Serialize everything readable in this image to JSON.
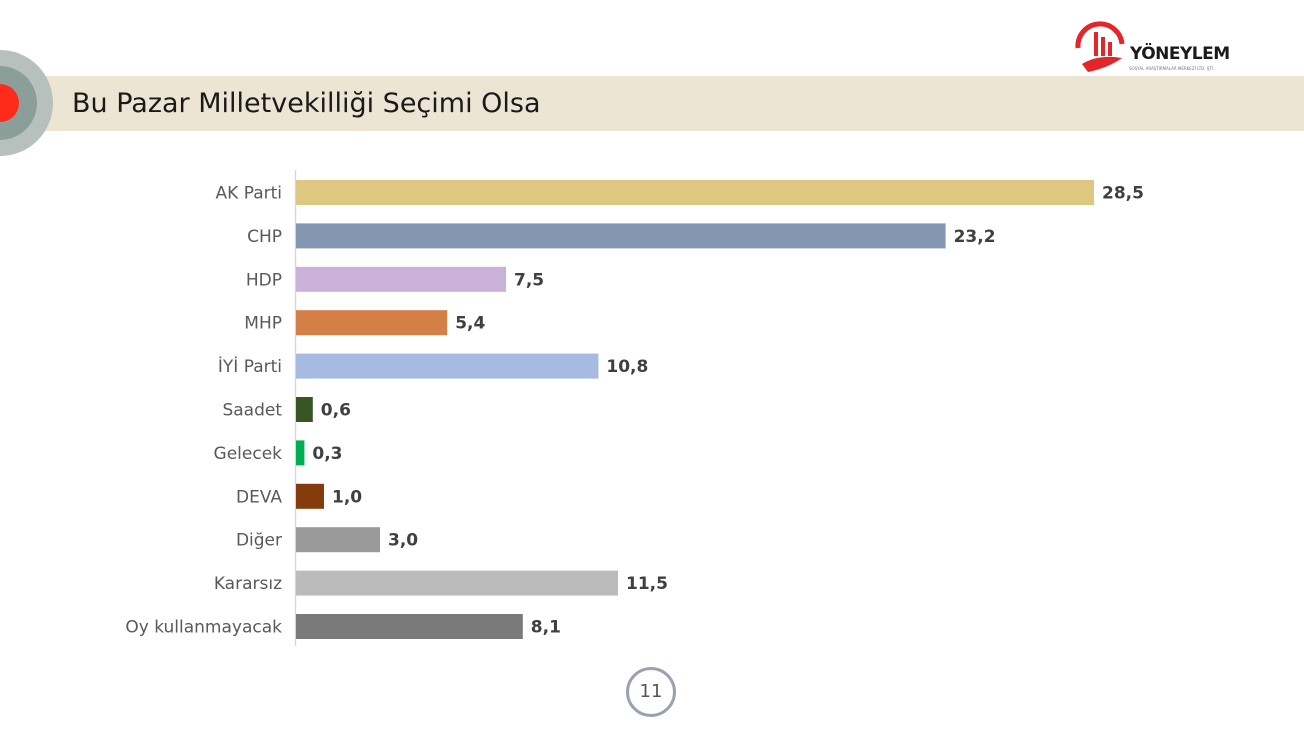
{
  "header": {
    "title": "Bu Pazar Milletvekilliği Seçimi Olsa",
    "logo_text": "YÖNEYLEM",
    "logo_sub": "SOSYAL ARAŞTIRMALAR MERKEZİ LTD. ŞTİ."
  },
  "footer": {
    "page_number": "11"
  },
  "colors": {
    "title_band": "#ede5d4",
    "logo_red": "#e3262a",
    "deco_red": "#ff2a1a"
  },
  "chart_data": {
    "type": "bar",
    "orientation": "horizontal",
    "title": "",
    "xlabel": "",
    "ylabel": "",
    "xlim": [
      0,
      28.5
    ],
    "grid": false,
    "legend": "none",
    "categories": [
      "AK Parti",
      "CHP",
      "HDP",
      "MHP",
      "İYİ Parti",
      "Saadet",
      "Gelecek",
      "DEVA",
      "Diğer",
      "Kararsız",
      "Oy kullanmayacak"
    ],
    "values": [
      28.5,
      23.2,
      7.5,
      5.4,
      10.8,
      0.6,
      0.3,
      1.0,
      3.0,
      11.5,
      8.1
    ],
    "value_labels": [
      "28,5",
      "23,2",
      "7,5",
      "5,4",
      "10,8",
      "0,6",
      "0,3",
      "1,0",
      "3,0",
      "11,5",
      "8,1"
    ],
    "colors": [
      "#dec880",
      "#8497b0",
      "#c9b1da",
      "#d37f45",
      "#a6bae2",
      "#375623",
      "#00b050",
      "#843c0c",
      "#999999",
      "#bcbbbb",
      "#7a7a7a"
    ]
  }
}
